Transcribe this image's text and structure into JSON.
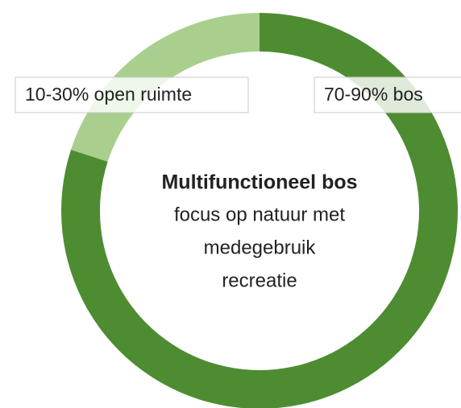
{
  "chart_data": {
    "type": "donut",
    "categories": [
      "70-90% bos",
      "10-30% open ruimte"
    ],
    "values": [
      80,
      20
    ],
    "colors": [
      "#4e8c32",
      "#a8cf8e"
    ],
    "title": "Multifunctioneel bos",
    "annotations": [
      "focus op natuur met",
      "medegebruik",
      "recreatie"
    ]
  }
}
